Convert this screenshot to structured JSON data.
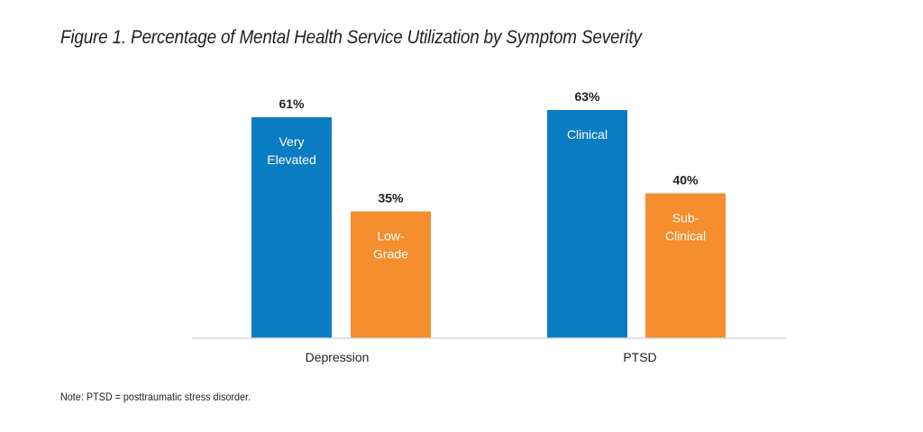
{
  "chart_data": {
    "type": "bar",
    "title": "Figure 1. Percentage of Mental Health Service Utilization by Symptom Severity",
    "xlabel": "",
    "ylabel": "",
    "ylim": [
      0,
      70
    ],
    "grid": false,
    "categories": [
      "Depression",
      "PTSD"
    ],
    "bars": [
      {
        "category": "Depression",
        "value": 61,
        "value_label": "61%",
        "bar_label": [
          "Very",
          "Elevated"
        ],
        "color": "#0a7cc1"
      },
      {
        "category": "Depression",
        "value": 35,
        "value_label": "35%",
        "bar_label": [
          "Low-",
          "Grade"
        ],
        "color": "#f48e2e"
      },
      {
        "category": "PTSD",
        "value": 63,
        "value_label": "63%",
        "bar_label": [
          "Clinical"
        ],
        "color": "#0a7cc1"
      },
      {
        "category": "PTSD",
        "value": 40,
        "value_label": "40%",
        "bar_label": [
          "Sub-",
          "Clinical"
        ],
        "color": "#f48e2e"
      }
    ],
    "note": "Note: PTSD = posttraumatic stress disorder."
  }
}
